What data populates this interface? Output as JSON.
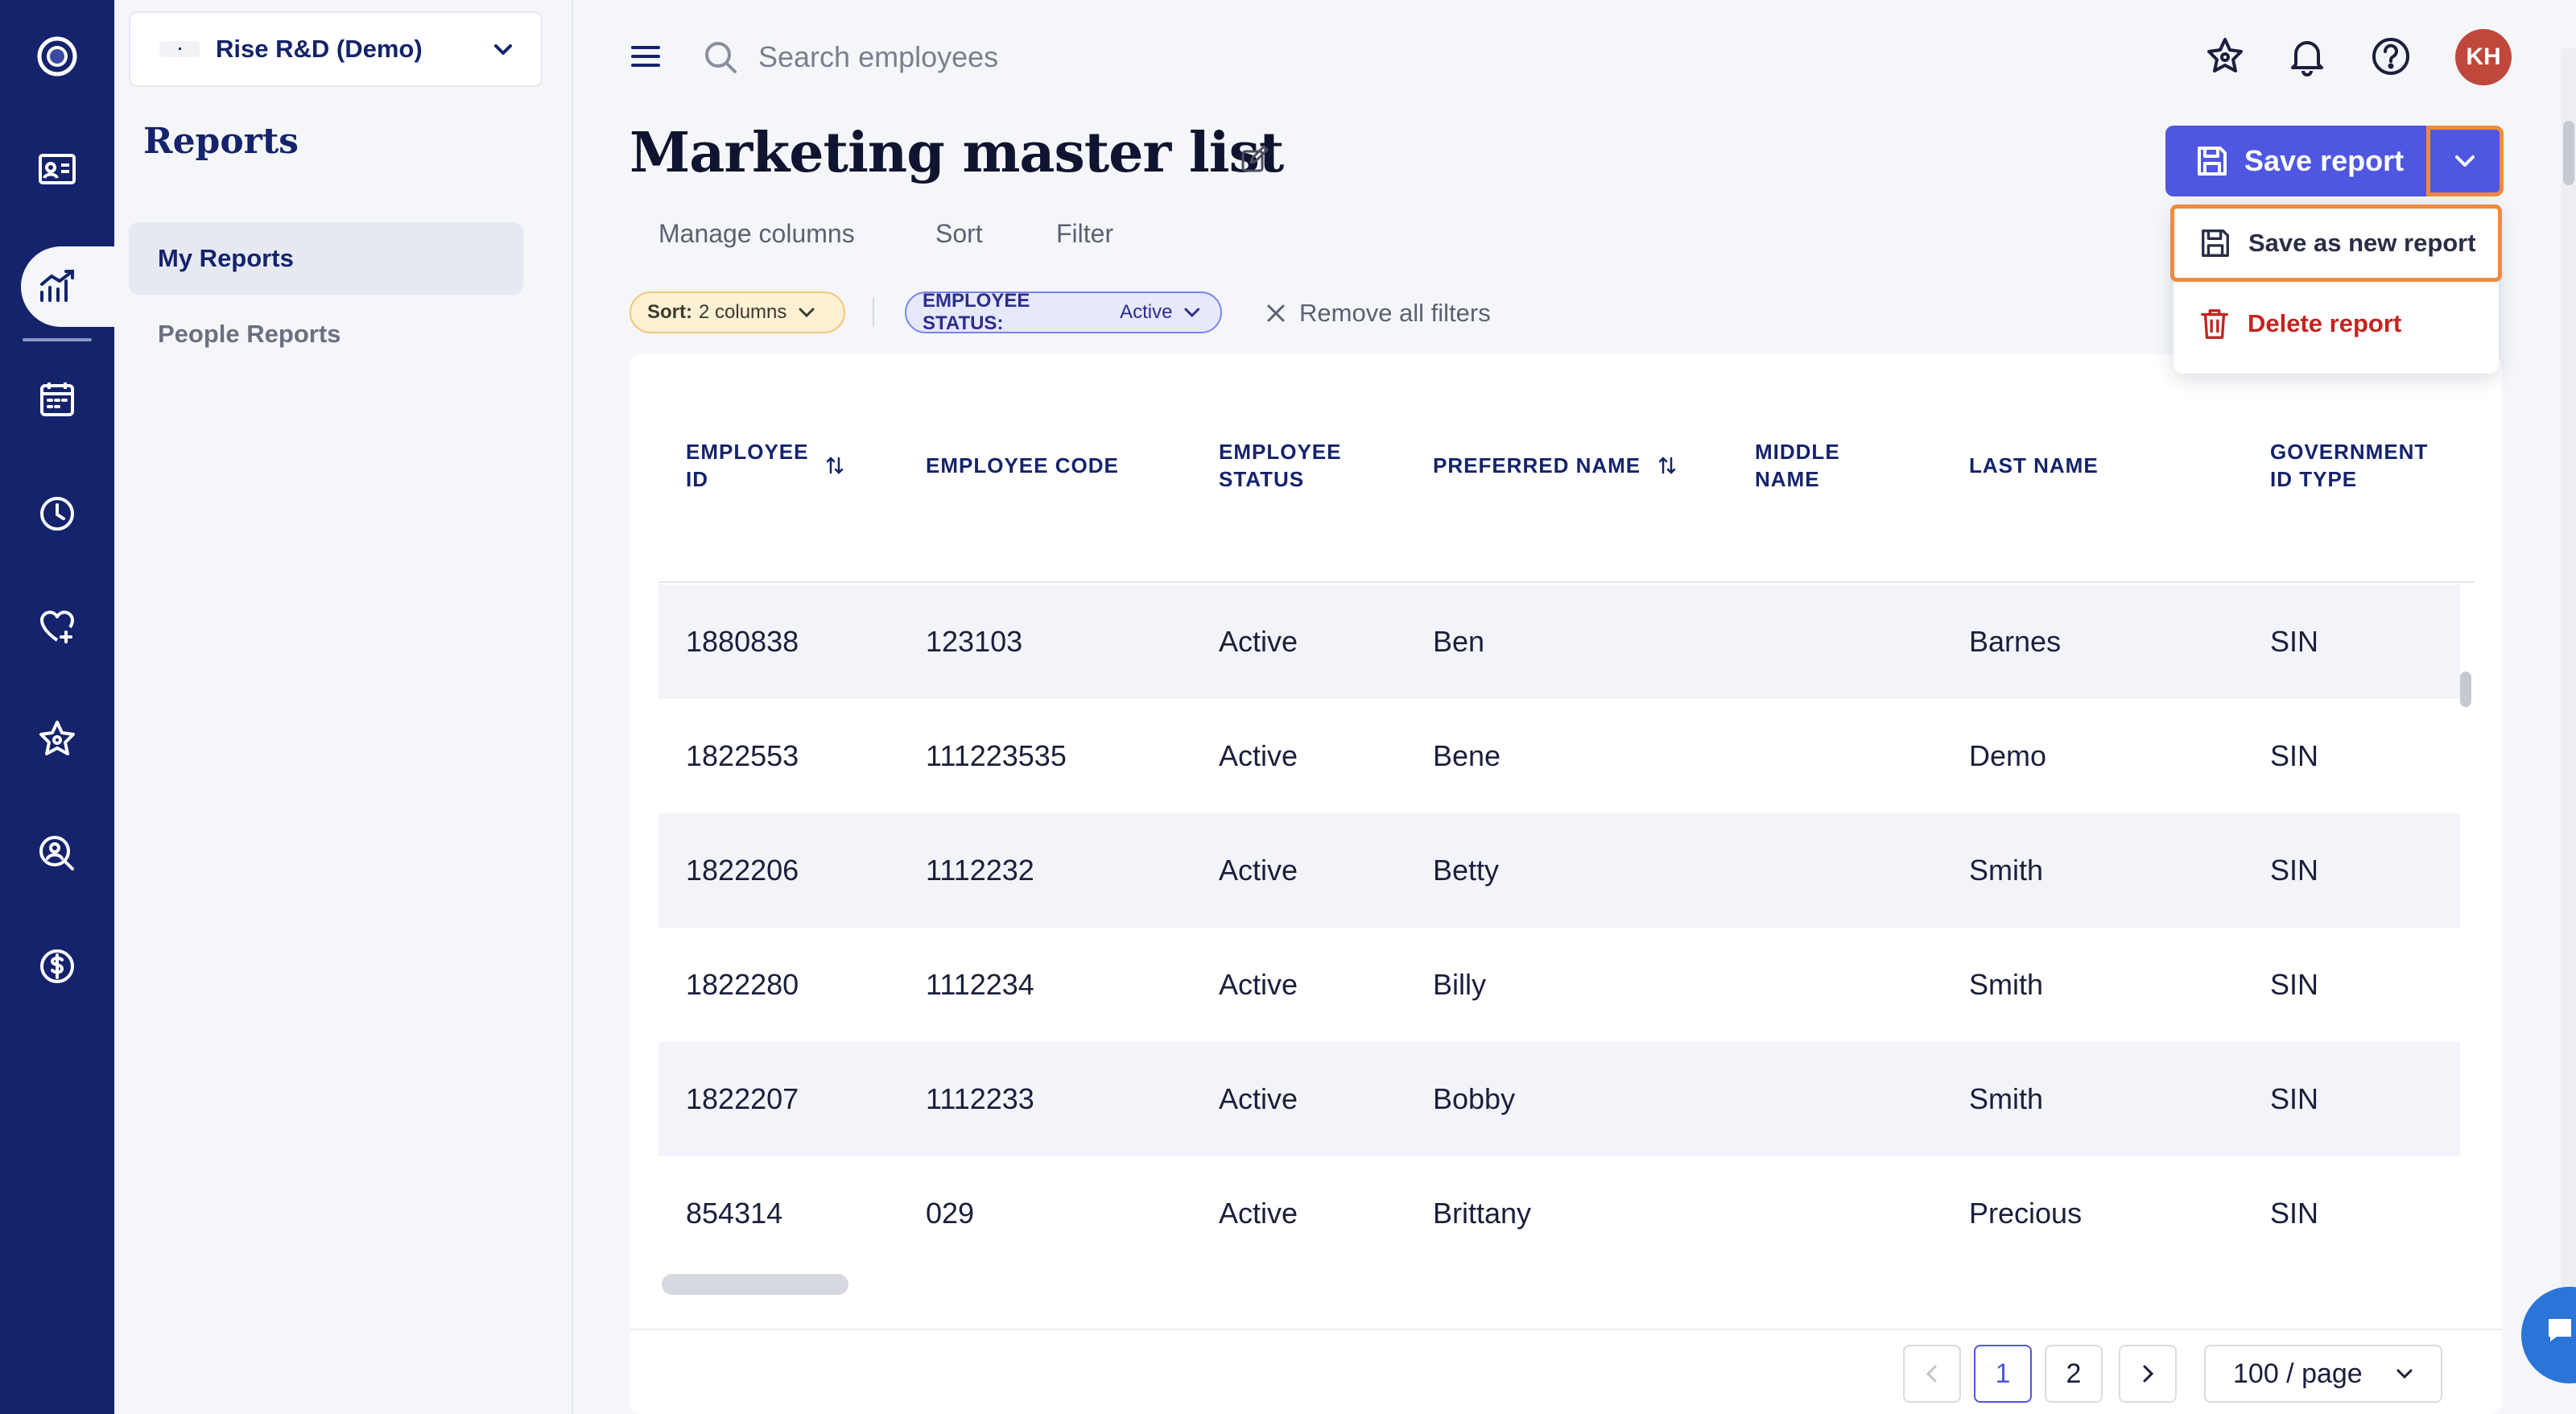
{
  "org": {
    "name": "Rise R&D (Demo)"
  },
  "sidebar": {
    "title": "Reports",
    "items": [
      {
        "label": "My Reports",
        "active": true
      },
      {
        "label": "People Reports",
        "active": false
      }
    ]
  },
  "rail": {
    "icons": [
      "app-logo-icon",
      "employee-card-icon",
      "reports-chart-icon",
      "calendar-icon",
      "clock-icon",
      "heart-plus-icon",
      "star-icon",
      "person-search-icon",
      "dollar-icon"
    ]
  },
  "search": {
    "placeholder": "Search employees"
  },
  "user": {
    "initials": "KH",
    "avatar_color": "#c0473b"
  },
  "page": {
    "title": "Marketing master list"
  },
  "actions": {
    "save_label": "Save report",
    "menu": [
      {
        "label": "Save as new report"
      },
      {
        "label": "Delete report"
      }
    ]
  },
  "toolbar": {
    "tabs": [
      "Manage columns",
      "Sort",
      "Filter"
    ]
  },
  "chips": {
    "sort_key": "Sort:",
    "sort_value": "2 columns",
    "status_key": "EMPLOYEE STATUS:",
    "status_value": "Active",
    "remove_all": "Remove all filters"
  },
  "table": {
    "columns": [
      {
        "label": "EMPLOYEE ID",
        "line1": "EMPLOYEE",
        "line2": "ID",
        "sortable": true
      },
      {
        "label": "EMPLOYEE CODE",
        "line1": "EMPLOYEE CODE",
        "line2": "",
        "sortable": false
      },
      {
        "label": "EMPLOYEE STATUS",
        "line1": "EMPLOYEE",
        "line2": "STATUS",
        "sortable": false
      },
      {
        "label": "PREFERRED NAME",
        "line1": "PREFERRED NAME",
        "line2": "",
        "sortable": true
      },
      {
        "label": "MIDDLE NAME",
        "line1": "MIDDLE",
        "line2": "NAME",
        "sortable": false
      },
      {
        "label": "LAST NAME",
        "line1": "LAST NAME",
        "line2": "",
        "sortable": false
      },
      {
        "label": "GOVERNMENT ID TYPE",
        "line1": "GOVERNMENT",
        "line2": "ID TYPE",
        "sortable": false
      }
    ],
    "rows": [
      [
        "1880838",
        "123103",
        "Active",
        "Ben",
        "",
        "Barnes",
        "SIN"
      ],
      [
        "1822553",
        "111223535",
        "Active",
        "Bene",
        "",
        "Demo",
        "SIN"
      ],
      [
        "1822206",
        "1112232",
        "Active",
        "Betty",
        "",
        "Smith",
        "SIN"
      ],
      [
        "1822280",
        "1112234",
        "Active",
        "Billy",
        "",
        "Smith",
        "SIN"
      ],
      [
        "1822207",
        "1112233",
        "Active",
        "Bobby",
        "",
        "Smith",
        "SIN"
      ],
      [
        "854314",
        "029",
        "Active",
        "Brittany",
        "",
        "Precious",
        "SIN"
      ]
    ]
  },
  "pagination": {
    "pages": [
      "1",
      "2"
    ],
    "current": "1",
    "page_size": "100 / page"
  },
  "colors": {
    "rail_bg": "#14236b",
    "primary": "#4f57e1",
    "highlight": "#f08a3e",
    "danger": "#c4231f"
  }
}
